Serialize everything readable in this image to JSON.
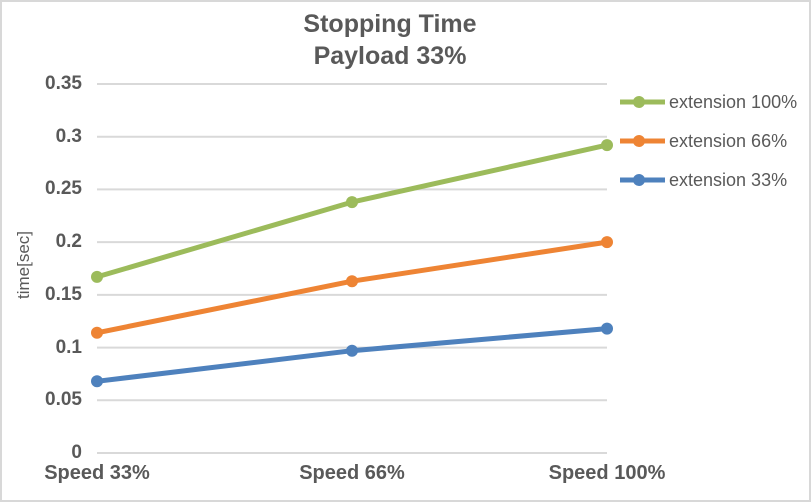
{
  "chart": {
    "title_line1": "Stopping Time",
    "title_line2": "Payload 33%",
    "y_axis_title": "time[sec]"
  },
  "chart_data": {
    "type": "line",
    "title": "Stopping Time Payload 33%",
    "xlabel": "",
    "ylabel": "time[sec]",
    "categories": [
      "Speed 33%",
      "Speed 66%",
      "Speed 100%"
    ],
    "series": [
      {
        "name": "extension 100%",
        "color": "#9CBB5B",
        "values": [
          0.167,
          0.238,
          0.292
        ]
      },
      {
        "name": "extension 66%",
        "color": "#EE8434",
        "values": [
          0.114,
          0.163,
          0.2
        ]
      },
      {
        "name": "extension 33%",
        "color": "#4E81BD",
        "values": [
          0.068,
          0.097,
          0.118
        ]
      }
    ],
    "ylim": [
      0,
      0.35
    ],
    "ytick_step": 0.05,
    "ytick_labels": [
      "0",
      "0.05",
      "0.1",
      "0.15",
      "0.2",
      "0.25",
      "0.3",
      "0.35"
    ],
    "grid": true,
    "legend_position": "right",
    "marker": "circle"
  },
  "colors": {
    "text": "#595959",
    "gridline": "#D9D9D9",
    "border": "#D8D8D8",
    "background": "#FFFFFF"
  }
}
